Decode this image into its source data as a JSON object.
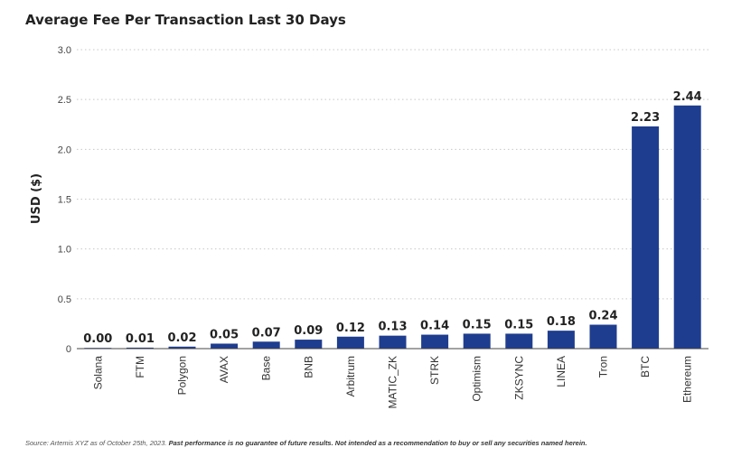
{
  "title": "Average Fee Per Transaction Last 30 Days",
  "footer": {
    "source": "Source: Artemis XYZ as of October 25th, 2023.",
    "disclaimer": "Past performance is no guarantee of future results. Not intended as a recommendation to buy or sell any securities named herein."
  },
  "colors": {
    "bar": "#1f3d8f",
    "grid": "#c8c8c8",
    "axis": "#444444",
    "text": "#222222"
  },
  "chart_data": {
    "type": "bar",
    "title": "Average Fee Per Transaction Last 30 Days",
    "xlabel": "",
    "ylabel": "USD ($)",
    "ylim": [
      0,
      3.0
    ],
    "yticks": [
      "0",
      "0.5",
      "1.0",
      "1.5",
      "2.0",
      "2.5",
      "3.0"
    ],
    "grid": true,
    "categories": [
      "Solana",
      "FTM",
      "Polygon",
      "AVAX",
      "Base",
      "BNB",
      "Arbitrum",
      "MATIC_ZK",
      "STRK",
      "Optimism",
      "ZKSYNC",
      "LINEA",
      "Tron",
      "BTC",
      "Ethereum"
    ],
    "values": [
      0.0,
      0.01,
      0.02,
      0.05,
      0.07,
      0.09,
      0.12,
      0.13,
      0.14,
      0.15,
      0.15,
      0.18,
      0.24,
      2.23,
      2.44
    ],
    "labels": [
      "0.00",
      "0.01",
      "0.02",
      "0.05",
      "0.07",
      "0.09",
      "0.12",
      "0.13",
      "0.14",
      "0.15",
      "0.15",
      "0.18",
      "0.24",
      "2.23",
      "2.44"
    ]
  }
}
